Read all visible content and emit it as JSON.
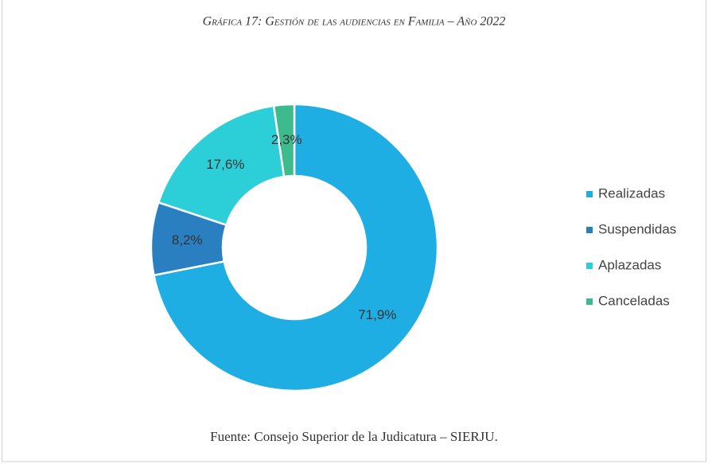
{
  "chart_data": {
    "type": "pie",
    "title": "Gráfica 17: Gestión de las audiencias en Familia – Año 2022",
    "source": "Fuente: Consejo Superior de la Judicatura – SIERJU.",
    "categories": [
      "Realizadas",
      "Suspendidas",
      "Aplazadas",
      "Canceladas"
    ],
    "values": [
      71.9,
      8.2,
      17.6,
      2.3
    ],
    "value_labels": [
      "71,9%",
      "8,2%",
      "17,6%",
      "2,3%"
    ],
    "colors": [
      "#1eaee4",
      "#2a7fc1",
      "#2ccfd8",
      "#3dbb8f"
    ],
    "legend": "right"
  }
}
